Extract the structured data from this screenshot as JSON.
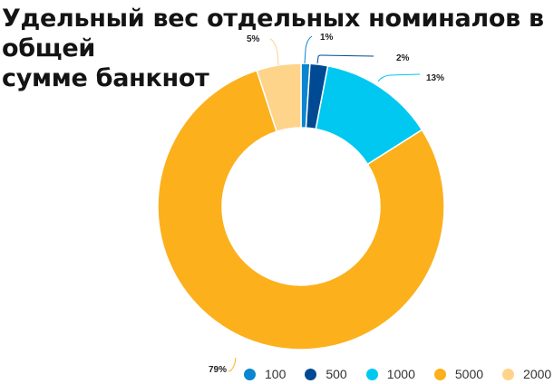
{
  "title_line1": "Удельный вес отдельных номиналов в общей",
  "title_line2": "сумме банкнот",
  "chart_data": {
    "type": "pie",
    "variant": "donut",
    "title": "Удельный вес отдельных номиналов в общей сумме банкнот",
    "categories": [
      "100",
      "500",
      "1000",
      "5000",
      "2000"
    ],
    "values": [
      1,
      2,
      13,
      79,
      5
    ],
    "unit": "%",
    "data_labels": [
      "1%",
      "2%",
      "13%",
      "79%",
      "5%"
    ],
    "colors": [
      "#0a86d0",
      "#004a94",
      "#00c8f0",
      "#fcb01c",
      "#fdd48a"
    ],
    "start_angle": "12 o'clock",
    "direction": "clockwise",
    "legend_position": "bottom-right"
  },
  "legend": [
    {
      "label": "100",
      "color": "#0a86d0"
    },
    {
      "label": "500",
      "color": "#004a94"
    },
    {
      "label": "1000",
      "color": "#00c8f0"
    },
    {
      "label": "5000",
      "color": "#fcb01c"
    },
    {
      "label": "2000",
      "color": "#fdd48a"
    }
  ]
}
